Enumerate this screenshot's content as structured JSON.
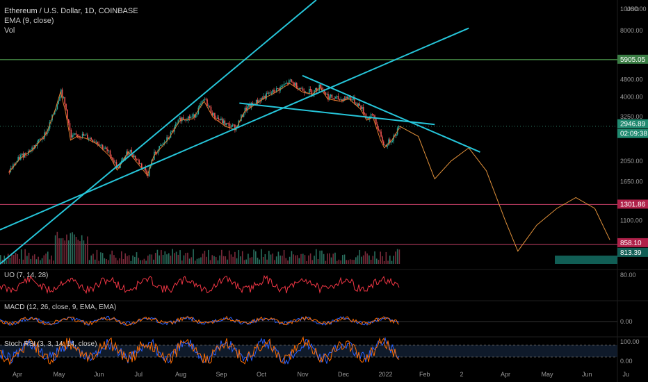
{
  "header": {
    "title": "Ethereum / U.S. Dollar, 1D, COINBASE",
    "ema_label": "EMA (9, close)",
    "vol_label": "Vol"
  },
  "indicators": {
    "uo_label": "UO (7, 14, 28)",
    "macd_label": "MACD (12, 26, close, 9, EMA, EMA)",
    "stoch_label": "Stoch RSI (3, 3, 14, 14, close)"
  },
  "chart_data": {
    "type": "candlestick",
    "price_axis": {
      "scale": "log",
      "currency": "USD",
      "ticks": [
        "10000.00",
        "8000.00",
        "4800.00",
        "4000.00",
        "3250.00",
        "2050.00",
        "1650.00",
        "1100.00"
      ],
      "range": [
        700,
        11000
      ]
    },
    "price_tags": [
      {
        "label": "5905.05",
        "color": "#3a7d44"
      },
      {
        "label": "2946.89",
        "color": "#1f8a70"
      },
      {
        "label": "02:09:38",
        "color": "#1f8a70"
      },
      {
        "label": "1301.86",
        "color": "#b0224a"
      },
      {
        "label": "858.10",
        "color": "#b0224a"
      },
      {
        "label": "813.39",
        "color": "#115e55"
      }
    ],
    "horizontal_levels": [
      {
        "price": 5905,
        "color": "#5fbf5f"
      },
      {
        "price": 1302,
        "color": "#c8406a"
      },
      {
        "price": 858,
        "color": "#c8406a"
      }
    ],
    "time_axis_labels": [
      "Apr",
      "May",
      "Jun",
      "Jul",
      "Aug",
      "Sep",
      "Oct",
      "Nov",
      "Dec",
      "2022",
      "Feb",
      "2",
      "Apr",
      "May",
      "Jun",
      "Ju"
    ],
    "price_path": [
      [
        "2021-04-01",
        1850
      ],
      [
        "2021-04-10",
        2150
      ],
      [
        "2021-04-20",
        2350
      ],
      [
        "2021-05-01",
        2800
      ],
      [
        "2021-05-08",
        3600
      ],
      [
        "2021-05-12",
        4300
      ],
      [
        "2021-05-16",
        3500
      ],
      [
        "2021-05-20",
        2600
      ],
      [
        "2021-05-25",
        2700
      ],
      [
        "2021-06-01",
        2650
      ],
      [
        "2021-06-10",
        2500
      ],
      [
        "2021-06-20",
        2200
      ],
      [
        "2021-06-26",
        1900
      ],
      [
        "2021-07-05",
        2300
      ],
      [
        "2021-07-15",
        1950
      ],
      [
        "2021-07-20",
        1800
      ],
      [
        "2021-07-25",
        2200
      ],
      [
        "2021-08-05",
        2600
      ],
      [
        "2021-08-15",
        3200
      ],
      [
        "2021-08-25",
        3250
      ],
      [
        "2021-09-03",
        3900
      ],
      [
        "2021-09-10",
        3300
      ],
      [
        "2021-09-20",
        3000
      ],
      [
        "2021-09-28",
        2900
      ],
      [
        "2021-10-05",
        3500
      ],
      [
        "2021-10-20",
        4000
      ],
      [
        "2021-10-30",
        4300
      ],
      [
        "2021-11-10",
        4700
      ],
      [
        "2021-11-20",
        4300
      ],
      [
        "2021-11-28",
        4200
      ],
      [
        "2021-12-04",
        4500
      ],
      [
        "2021-12-10",
        4000
      ],
      [
        "2021-12-20",
        3900
      ],
      [
        "2021-12-27",
        4000
      ],
      [
        "2022-01-05",
        3600
      ],
      [
        "2022-01-10",
        3200
      ],
      [
        "2022-01-15",
        3300
      ],
      [
        "2022-01-21",
        2600
      ],
      [
        "2022-01-24",
        2400
      ],
      [
        "2022-01-30",
        2600
      ],
      [
        "2022-02-05",
        2950
      ]
    ],
    "projection_path": [
      [
        "2022-02-05",
        2950
      ],
      [
        "2022-02-20",
        2650
      ],
      [
        "2022-03-05",
        1700
      ],
      [
        "2022-03-18",
        2050
      ],
      [
        "2022-04-01",
        2350
      ],
      [
        "2022-04-15",
        1850
      ],
      [
        "2022-04-30",
        1100
      ],
      [
        "2022-05-10",
        800
      ],
      [
        "2022-05-25",
        1050
      ],
      [
        "2022-06-10",
        1250
      ],
      [
        "2022-06-25",
        1400
      ],
      [
        "2022-07-10",
        1250
      ],
      [
        "2022-07-22",
        900
      ]
    ],
    "trendlines": [
      {
        "from": [
          "2021-03-25",
          700
        ],
        "to": [
          "2021-12-01",
          11000
        ],
        "color": "#26c6da"
      },
      {
        "from": [
          "2021-03-25",
          1000
        ],
        "to": [
          "2022-04-01",
          8200
        ],
        "color": "#26c6da"
      },
      {
        "from": [
          "2021-10-01",
          3750
        ],
        "to": [
          "2022-03-05",
          3000
        ],
        "color": "#26c6da"
      },
      {
        "from": [
          "2021-11-20",
          5000
        ],
        "to": [
          "2022-04-10",
          2250
        ],
        "color": "#26c6da"
      }
    ],
    "uo": {
      "tick": "80.00"
    },
    "macd": {
      "tick": "0.00"
    },
    "stoch_rsi": {
      "ticks": [
        "100.00",
        "0.00"
      ]
    }
  }
}
